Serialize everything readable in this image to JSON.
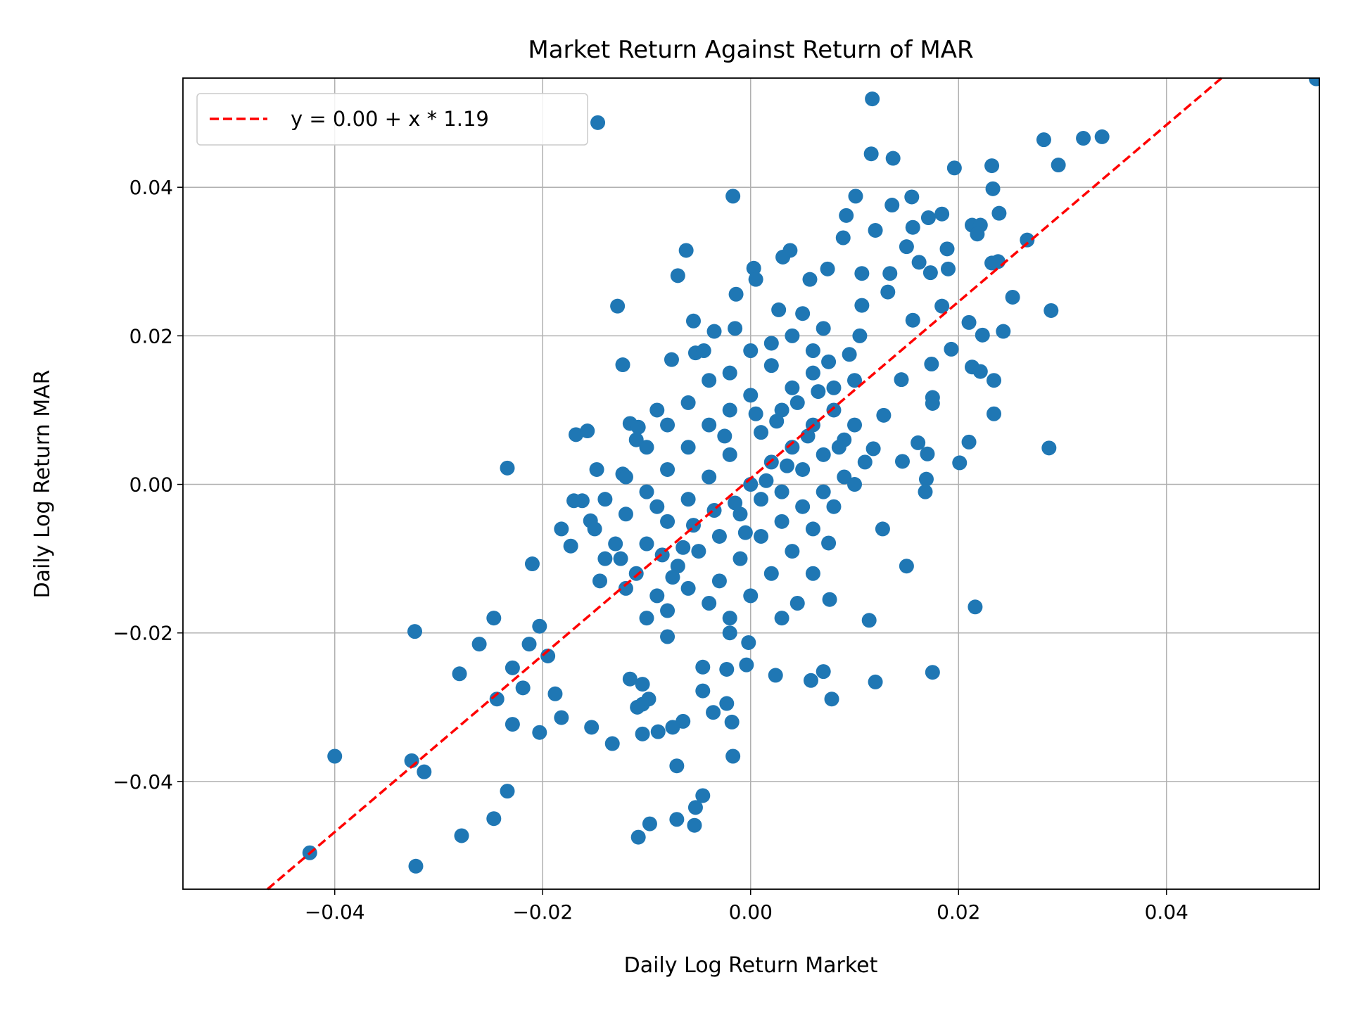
{
  "chart_data": {
    "type": "scatter",
    "title": "Market Return Against Return of MAR",
    "xlabel": "Daily Log Return Market",
    "ylabel": "Daily Log Return MAR",
    "xlim": [
      -0.0546,
      0.0547
    ],
    "ylim": [
      -0.0545,
      0.0547
    ],
    "xticks": [
      -0.04,
      -0.02,
      0.0,
      0.02,
      0.04
    ],
    "xtick_labels": [
      "−0.04",
      "−0.02",
      "0.00",
      "0.02",
      "0.04"
    ],
    "yticks": [
      -0.04,
      -0.02,
      0.0,
      0.02,
      0.04
    ],
    "ytick_labels": [
      "−0.04",
      "−0.02",
      "0.00",
      "0.02",
      "0.04"
    ],
    "grid": true,
    "legend": {
      "placement": "top-left",
      "entries": [
        "y = 0.00 + x * 1.19"
      ]
    },
    "fit_line": {
      "intercept": 0.0008,
      "slope": 1.19,
      "color": "#ff0000",
      "style": "dashed"
    },
    "point_color": "#1f77b4",
    "points": [
      [
        0.0544,
        0.0546
      ],
      [
        0.0117,
        0.0519
      ],
      [
        -0.0147,
        0.0487
      ],
      [
        0.0116,
        0.0445
      ],
      [
        0.0137,
        0.0439
      ],
      [
        0.0282,
        0.0464
      ],
      [
        0.032,
        0.0466
      ],
      [
        0.0338,
        0.0468
      ],
      [
        0.0296,
        0.043
      ],
      [
        0.0196,
        0.0426
      ],
      [
        0.0232,
        0.0429
      ],
      [
        0.0233,
        0.0398
      ],
      [
        -0.0017,
        0.0388
      ],
      [
        0.0101,
        0.0388
      ],
      [
        0.0155,
        0.0387
      ],
      [
        0.0136,
        0.0376
      ],
      [
        0.0184,
        0.0364
      ],
      [
        0.0171,
        0.0359
      ],
      [
        0.0092,
        0.0362
      ],
      [
        0.0239,
        0.0365
      ],
      [
        0.0213,
        0.0349
      ],
      [
        0.0221,
        0.0349
      ],
      [
        0.0218,
        0.0337
      ],
      [
        0.0156,
        0.0346
      ],
      [
        0.012,
        0.0342
      ],
      [
        0.0089,
        0.0332
      ],
      [
        0.0266,
        0.0329
      ],
      [
        -0.0062,
        0.0315
      ],
      [
        0.0038,
        0.0315
      ],
      [
        0.0031,
        0.0306
      ],
      [
        0.015,
        0.032
      ],
      [
        0.0189,
        0.0317
      ],
      [
        0.0162,
        0.0299
      ],
      [
        0.0232,
        0.0298
      ],
      [
        0.0238,
        0.03
      ],
      [
        0.0003,
        0.0291
      ],
      [
        0.0005,
        0.0276
      ],
      [
        -0.007,
        0.0281
      ],
      [
        0.0107,
        0.0284
      ],
      [
        0.0134,
        0.0284
      ],
      [
        0.0173,
        0.0285
      ],
      [
        0.019,
        0.029
      ],
      [
        0.0057,
        0.0276
      ],
      [
        0.0074,
        0.029
      ],
      [
        0.0252,
        0.0252
      ],
      [
        -0.0128,
        0.024
      ],
      [
        -0.0014,
        0.0256
      ],
      [
        0.0027,
        0.0235
      ],
      [
        0.0184,
        0.024
      ],
      [
        0.0289,
        0.0234
      ],
      [
        0.0107,
        0.0241
      ],
      [
        0.0132,
        0.0259
      ],
      [
        -0.0055,
        0.022
      ],
      [
        -0.0035,
        0.0206
      ],
      [
        0.0156,
        0.0221
      ],
      [
        0.021,
        0.0218
      ],
      [
        0.0223,
        0.0201
      ],
      [
        0.0243,
        0.0206
      ],
      [
        0.0193,
        0.0182
      ],
      [
        0.0213,
        0.0158
      ],
      [
        0.0234,
        0.014
      ],
      [
        0.0221,
        0.0152
      ],
      [
        0.0174,
        0.0162
      ],
      [
        0.0145,
        0.0141
      ],
      [
        -0.0123,
        0.0161
      ],
      [
        -0.0076,
        0.0168
      ],
      [
        -0.0053,
        0.0177
      ],
      [
        0.0175,
        0.0117
      ],
      [
        0.0175,
        0.0109
      ],
      [
        0.0234,
        0.0095
      ],
      [
        0.0128,
        0.0093
      ],
      [
        -0.0116,
        0.0082
      ],
      [
        -0.0108,
        0.0077
      ],
      [
        -0.0168,
        0.0067
      ],
      [
        -0.0157,
        0.0072
      ],
      [
        0.0161,
        0.0056
      ],
      [
        0.021,
        0.0057
      ],
      [
        0.0287,
        0.0049
      ],
      [
        0.0118,
        0.0048
      ],
      [
        0.017,
        0.0041
      ],
      [
        0.0146,
        0.0031
      ],
      [
        0.0201,
        0.0029
      ],
      [
        -0.0234,
        0.0022
      ],
      [
        -0.0148,
        0.002
      ],
      [
        -0.0123,
        0.0014
      ],
      [
        0.0169,
        0.0007
      ],
      [
        0.0168,
        -0.001
      ],
      [
        -0.017,
        -0.0022
      ],
      [
        -0.0162,
        -0.0022
      ],
      [
        -0.0182,
        -0.006
      ],
      [
        0.0127,
        -0.006
      ],
      [
        -0.021,
        -0.0107
      ],
      [
        0.015,
        -0.011
      ],
      [
        0.0075,
        -0.0079
      ],
      [
        -0.0173,
        -0.0083
      ],
      [
        -0.0154,
        -0.0049
      ],
      [
        0.0076,
        -0.0155
      ],
      [
        0.0114,
        -0.0183
      ],
      [
        0.0216,
        -0.0165
      ],
      [
        -0.0323,
        -0.0198
      ],
      [
        -0.0247,
        -0.018
      ],
      [
        -0.0261,
        -0.0215
      ],
      [
        -0.0203,
        -0.0191
      ],
      [
        -0.0213,
        -0.0215
      ],
      [
        -0.0195,
        -0.0231
      ],
      [
        -0.0229,
        -0.0247
      ],
      [
        -0.028,
        -0.0255
      ],
      [
        -0.0219,
        -0.0274
      ],
      [
        -0.0244,
        -0.0289
      ],
      [
        -0.0229,
        -0.0323
      ],
      [
        -0.0203,
        -0.0334
      ],
      [
        -0.0188,
        -0.0282
      ],
      [
        -0.0182,
        -0.0314
      ],
      [
        -0.0153,
        -0.0327
      ],
      [
        -0.0133,
        -0.0349
      ],
      [
        0.0175,
        -0.0253
      ],
      [
        0.012,
        -0.0266
      ],
      [
        0.0078,
        -0.0289
      ],
      [
        0.0058,
        -0.0264
      ],
      [
        0.0024,
        -0.0257
      ],
      [
        0.007,
        -0.0252
      ],
      [
        -0.04,
        -0.0366
      ],
      [
        -0.0326,
        -0.0372
      ],
      [
        -0.0314,
        -0.0387
      ],
      [
        -0.0234,
        -0.0413
      ],
      [
        -0.0247,
        -0.045
      ],
      [
        -0.0278,
        -0.0473
      ],
      [
        -0.0424,
        -0.0496
      ],
      [
        -0.0322,
        -0.0514
      ],
      [
        -0.0108,
        -0.0475
      ],
      [
        -0.0097,
        -0.0457
      ],
      [
        -0.0071,
        -0.0451
      ],
      [
        -0.0054,
        -0.0459
      ],
      [
        -0.0053,
        -0.0435
      ],
      [
        -0.0046,
        -0.0419
      ],
      [
        -0.0071,
        -0.0379
      ],
      [
        -0.0017,
        -0.0366
      ],
      [
        -0.0018,
        -0.032
      ],
      [
        -0.0036,
        -0.0307
      ],
      [
        -0.0023,
        -0.0295
      ],
      [
        -0.0046,
        -0.0278
      ],
      [
        -0.0065,
        -0.0319
      ],
      [
        -0.0075,
        -0.0327
      ],
      [
        -0.0089,
        -0.0333
      ],
      [
        -0.0104,
        -0.0336
      ],
      [
        -0.0104,
        -0.0296
      ],
      [
        -0.0098,
        -0.0289
      ],
      [
        -0.0109,
        -0.03
      ],
      [
        -0.0116,
        -0.0262
      ],
      [
        -0.0104,
        -0.0269
      ],
      [
        -0.008,
        -0.0205
      ],
      [
        -0.0046,
        -0.0246
      ],
      [
        -0.0023,
        -0.0249
      ],
      [
        -0.0004,
        -0.0243
      ],
      [
        -0.0002,
        -0.0213
      ],
      [
        0.0,
        0.0
      ],
      [
        0.002,
        0.003
      ],
      [
        0.004,
        0.005
      ],
      [
        0.006,
        0.008
      ],
      [
        0.008,
        0.01
      ],
      [
        0.003,
        0.01
      ],
      [
        0.001,
        0.007
      ],
      [
        -0.002,
        0.004
      ],
      [
        -0.004,
        0.001
      ],
      [
        -0.006,
        -0.002
      ],
      [
        -0.008,
        -0.005
      ],
      [
        -0.01,
        -0.008
      ],
      [
        -0.003,
        -0.007
      ],
      [
        -0.001,
        -0.004
      ],
      [
        0.001,
        -0.002
      ],
      [
        0.003,
        -0.001
      ],
      [
        0.005,
        0.002
      ],
      [
        0.007,
        0.004
      ],
      [
        0.009,
        0.006
      ],
      [
        0.01,
        0.014
      ],
      [
        0.006,
        0.015
      ],
      [
        0.004,
        0.013
      ],
      [
        0.002,
        0.016
      ],
      [
        0.0,
        0.012
      ],
      [
        -0.002,
        0.01
      ],
      [
        -0.004,
        0.008
      ],
      [
        -0.006,
        0.005
      ],
      [
        -0.008,
        0.002
      ],
      [
        -0.01,
        -0.001
      ],
      [
        -0.012,
        -0.004
      ],
      [
        -0.013,
        -0.008
      ],
      [
        -0.011,
        -0.012
      ],
      [
        -0.009,
        -0.015
      ],
      [
        -0.007,
        -0.011
      ],
      [
        -0.005,
        -0.009
      ],
      [
        -0.003,
        -0.013
      ],
      [
        -0.001,
        -0.01
      ],
      [
        0.001,
        -0.007
      ],
      [
        0.003,
        -0.005
      ],
      [
        0.005,
        -0.003
      ],
      [
        0.007,
        -0.001
      ],
      [
        0.009,
        0.001
      ],
      [
        0.011,
        0.003
      ],
      [
        0.01,
        0.008
      ],
      [
        0.008,
        0.013
      ],
      [
        0.006,
        0.018
      ],
      [
        0.004,
        0.02
      ],
      [
        0.002,
        0.019
      ],
      [
        0.0,
        0.018
      ],
      [
        -0.002,
        0.015
      ],
      [
        -0.004,
        0.014
      ],
      [
        -0.006,
        0.011
      ],
      [
        -0.008,
        0.008
      ],
      [
        -0.01,
        0.005
      ],
      [
        -0.012,
        0.001
      ],
      [
        -0.014,
        -0.002
      ],
      [
        -0.015,
        -0.006
      ],
      [
        -0.014,
        -0.01
      ],
      [
        -0.012,
        -0.014
      ],
      [
        -0.01,
        -0.018
      ],
      [
        -0.008,
        -0.017
      ],
      [
        -0.006,
        -0.014
      ],
      [
        -0.004,
        -0.016
      ],
      [
        -0.002,
        -0.018
      ],
      [
        0.0,
        -0.015
      ],
      [
        0.002,
        -0.012
      ],
      [
        0.004,
        -0.009
      ],
      [
        0.006,
        -0.006
      ],
      [
        0.008,
        -0.003
      ],
      [
        0.01,
        0.0
      ],
      [
        0.0015,
        0.0005
      ],
      [
        0.0025,
        0.0085
      ],
      [
        -0.0015,
        -0.0025
      ],
      [
        -0.0025,
        0.0065
      ],
      [
        0.0045,
        0.011
      ],
      [
        0.0055,
        0.0065
      ],
      [
        -0.0055,
        -0.0055
      ],
      [
        -0.0065,
        -0.0085
      ],
      [
        0.0065,
        0.0125
      ],
      [
        0.0075,
        0.0165
      ],
      [
        -0.0075,
        -0.0125
      ],
      [
        -0.0085,
        -0.0095
      ],
      [
        0.0035,
        0.0025
      ],
      [
        -0.0035,
        -0.0035
      ],
      [
        0.0005,
        0.0095
      ],
      [
        -0.0005,
        -0.0065
      ],
      [
        0.0085,
        0.005
      ],
      [
        -0.009,
        -0.003
      ],
      [
        0.0045,
        -0.016
      ],
      [
        0.006,
        -0.012
      ],
      [
        0.003,
        -0.018
      ],
      [
        -0.002,
        -0.02
      ],
      [
        0.007,
        0.021
      ],
      [
        0.005,
        0.023
      ],
      [
        -0.0015,
        0.021
      ],
      [
        -0.0045,
        0.018
      ],
      [
        -0.009,
        0.01
      ],
      [
        -0.011,
        0.006
      ],
      [
        -0.0125,
        -0.01
      ],
      [
        -0.0145,
        -0.013
      ],
      [
        0.0095,
        0.0175
      ],
      [
        0.0105,
        0.02
      ]
    ]
  }
}
